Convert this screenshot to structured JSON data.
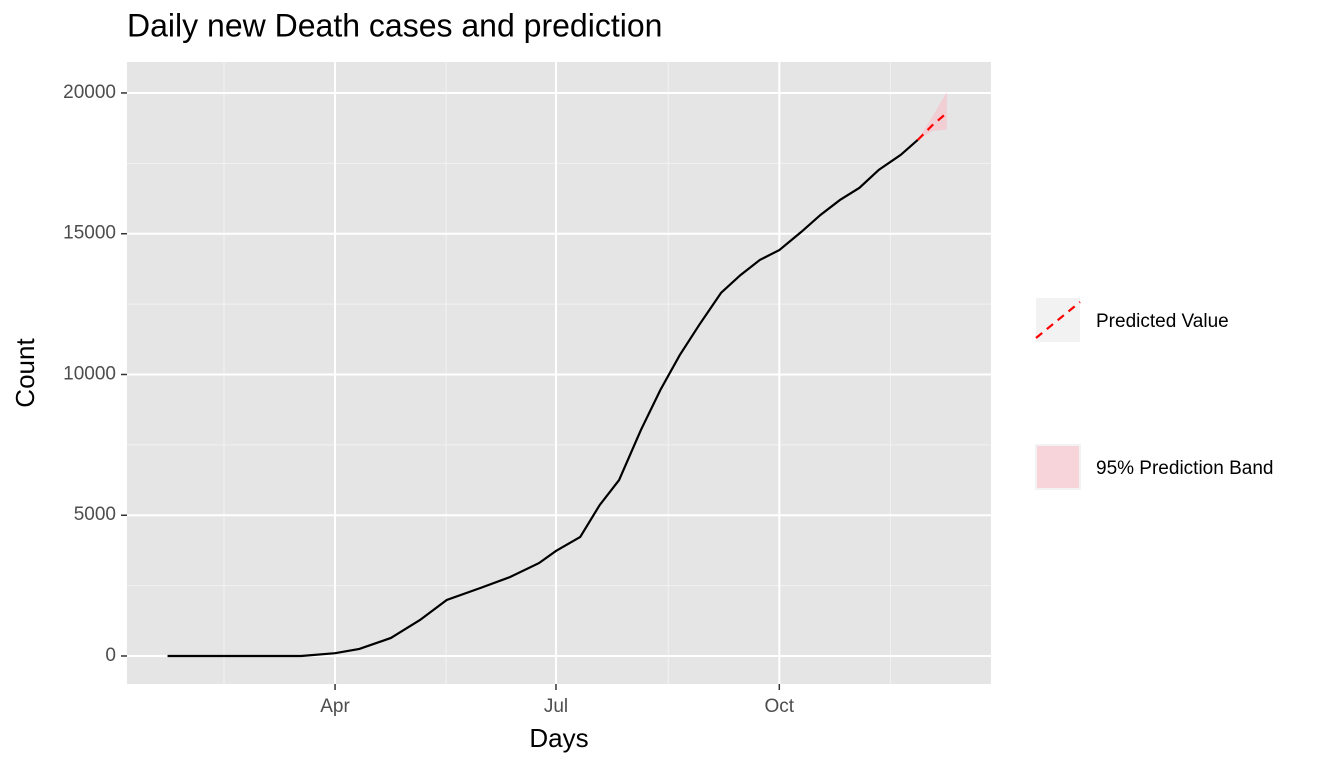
{
  "chart_data": {
    "type": "line",
    "title": "Daily new Death cases and prediction",
    "x_label": "Days",
    "y_label": "Count",
    "xlim": [
      6.3,
      362.2
    ],
    "ylim": [
      -995,
      21100
    ],
    "xticks": [
      {
        "value": 92,
        "label": "Apr"
      },
      {
        "value": 183,
        "label": "Jul"
      },
      {
        "value": 275,
        "label": "Oct"
      }
    ],
    "yticks": [
      0,
      5000,
      10000,
      15000,
      20000
    ],
    "grid": true,
    "series": [
      {
        "color": "#000000",
        "x": [
          23,
          78,
          92,
          102,
          115,
          127,
          138,
          152,
          164,
          176,
          183,
          193,
          201,
          209,
          218,
          226,
          234,
          242,
          251,
          259,
          267,
          275,
          284,
          292,
          300,
          308,
          316,
          325,
          332
        ],
        "values": [
          0,
          0,
          100,
          250,
          640,
          1280,
          1990,
          2420,
          2800,
          3300,
          3730,
          4230,
          5360,
          6250,
          8030,
          9450,
          10690,
          11760,
          12900,
          13530,
          14070,
          14420,
          15060,
          15670,
          16200,
          16630,
          17270,
          17800,
          18330
        ]
      },
      {
        "name": "Predicted Value",
        "color": "#ff0000",
        "dashed": true,
        "x": [
          332,
          338,
          344
        ],
        "values": [
          18330,
          18850,
          19290
        ]
      }
    ],
    "band": {
      "name": "95% Prediction Band",
      "color": "#f4c6ce",
      "x": [
        332,
        338,
        344
      ],
      "lower": [
        18330,
        18650,
        18700
      ],
      "upper": [
        18330,
        19150,
        20030
      ]
    }
  }
}
